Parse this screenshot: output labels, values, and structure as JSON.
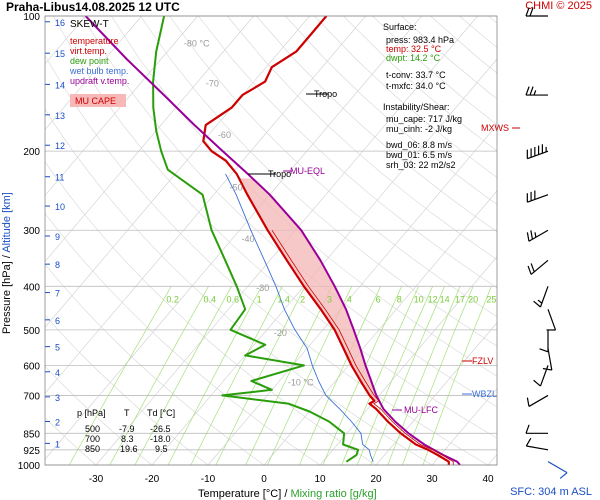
{
  "header": {
    "station": "Praha-Libus",
    "datetime": "14.08.2025 12 UTC",
    "credit": "CHMI © 2025"
  },
  "footer": {
    "sfc": "SFC: 304 m ASL",
    "xlabel_temp": "Temperature [°C]",
    "xlabel_sep": "/",
    "xlabel_mr": "Mixing ratio [g/kg]"
  },
  "yaxis": {
    "pressure_label": "Pressure [hPa]",
    "sep": "/",
    "altitude_label": "Altitude [km]"
  },
  "colors": {
    "temperature": "#cc0000",
    "virt_temp": "#cc0000",
    "dewpoint": "#2a9d0a",
    "wetbulb": "#3a6fd8",
    "parcel": "#990099",
    "cape_fill": "#f4b6b6",
    "mixing": "#a6e07a",
    "iso": "#cfcfcf",
    "grid": "#bdbdbd"
  },
  "legend": {
    "title": "SKEW-T",
    "items": [
      {
        "label": "temperature",
        "color": "#cc0000"
      },
      {
        "label": "virt.temp.",
        "color": "#cc0000"
      },
      {
        "label": "dew point",
        "color": "#2a9d0a"
      },
      {
        "label": "wet bulb temp.",
        "color": "#3a6fd8"
      },
      {
        "label": "updraft v.temp.",
        "color": "#990099"
      }
    ],
    "cape_badge": "MU CAPE"
  },
  "surface_box": {
    "title": "Surface:",
    "press": "press: 983.4 hPa",
    "temp": "temp: 32.5 °C",
    "dwpt": "dwpt: 14.2 °C",
    "tconv": "t-conv: 33.7 °C",
    "tmxfc": "t-mxfc: 34.0 °C",
    "inst_title": "Instability/Shear:",
    "mucape": "mu_cape: 717 J/kg",
    "mucinh": "mu_cinh: -2 J/kg",
    "bwd06": "bwd_06: 8.8 m/s",
    "bwd01": "bwd_01: 6.5 m/s",
    "srh03": "srh_03: 22 m2/s2"
  },
  "table": {
    "headers": [
      "p [hPa]",
      "T",
      "Td [°C]"
    ],
    "rows": [
      [
        "500",
        "-7.9",
        "-26.5"
      ],
      [
        "700",
        "8.3",
        "-18.0"
      ],
      [
        "850",
        "19.6",
        "9.5"
      ]
    ]
  },
  "annotations": {
    "tropo": "Tropo",
    "mu_eql": "MU-EQL",
    "mu_lfc": "MU-LFC",
    "fzlv": "FZLV",
    "wbzl": "WBZL",
    "mxws": "MXWS"
  },
  "mixing_labels": [
    "0.2",
    "0.4",
    "0.6",
    "1",
    "1.4",
    "2",
    "3",
    "4",
    "6",
    "8",
    "10",
    "12",
    "14",
    "17",
    "20",
    "25"
  ],
  "chart_data": {
    "type": "line",
    "title": "",
    "xlabel": "Temperature [°C] / Mixing ratio [g/kg]",
    "ylabel": "Pressure [hPa] / Altitude [km]",
    "xlim": [
      -35,
      45
    ],
    "ylim": [
      1000,
      100
    ],
    "y_scale": "log",
    "x_ticks": [
      "-30",
      "-20",
      "-10",
      "0",
      "10",
      "20",
      "30",
      "40"
    ],
    "p_ticks": [
      "100",
      "200",
      "300",
      "400",
      "500",
      "600",
      "700",
      "850",
      "925",
      "1000"
    ],
    "alt_ticks": [
      "1",
      "2",
      "3",
      "4",
      "5",
      "6",
      "7",
      "8",
      "9",
      "10",
      "11",
      "12",
      "13",
      "14",
      "15",
      "16"
    ],
    "iso_labels": [
      "-80 °C",
      "-70",
      "-60",
      "-50",
      "-40",
      "-30",
      "-20",
      "-10 °C"
    ],
    "series": [
      {
        "name": "temperature",
        "points": [
          [
            1000,
            33
          ],
          [
            983,
            32.5
          ],
          [
            950,
            29.5
          ],
          [
            925,
            27
          ],
          [
            900,
            24
          ],
          [
            850,
            19.6
          ],
          [
            800,
            15.5
          ],
          [
            750,
            11.5
          ],
          [
            730,
            9.5
          ],
          [
            720,
            10
          ],
          [
            700,
            8.3
          ],
          [
            650,
            4.5
          ],
          [
            600,
            0.5
          ],
          [
            550,
            -3.5
          ],
          [
            500,
            -7.9
          ],
          [
            450,
            -13.5
          ],
          [
            400,
            -20
          ],
          [
            350,
            -27
          ],
          [
            300,
            -35
          ],
          [
            250,
            -44
          ],
          [
            225,
            -49
          ],
          [
            210,
            -53
          ],
          [
            200,
            -57
          ],
          [
            190,
            -60
          ],
          [
            175,
            -62
          ],
          [
            160,
            -60
          ],
          [
            150,
            -60
          ],
          [
            140,
            -58
          ],
          [
            130,
            -59
          ],
          [
            120,
            -57
          ],
          [
            110,
            -57
          ],
          [
            100,
            -57
          ]
        ]
      },
      {
        "name": "dew point",
        "points": [
          [
            983,
            14.2
          ],
          [
            950,
            15
          ],
          [
            925,
            14.5
          ],
          [
            900,
            11
          ],
          [
            850,
            9.5
          ],
          [
            800,
            5
          ],
          [
            760,
            0
          ],
          [
            730,
            -5
          ],
          [
            700,
            -18
          ],
          [
            680,
            -10
          ],
          [
            650,
            -15
          ],
          [
            600,
            -8
          ],
          [
            570,
            -20
          ],
          [
            540,
            -18
          ],
          [
            500,
            -26.5
          ],
          [
            450,
            -27
          ],
          [
            400,
            -32
          ],
          [
            350,
            -38
          ],
          [
            300,
            -45
          ],
          [
            250,
            -52
          ],
          [
            220,
            -62
          ],
          [
            200,
            -66
          ],
          [
            180,
            -70
          ],
          [
            160,
            -74
          ],
          [
            140,
            -78
          ],
          [
            120,
            -82
          ],
          [
            100,
            -86
          ]
        ]
      },
      {
        "name": "wet bulb temp.",
        "points": [
          [
            983,
            19
          ],
          [
            950,
            17.5
          ],
          [
            925,
            16.5
          ],
          [
            900,
            14.5
          ],
          [
            850,
            12.5
          ],
          [
            800,
            9
          ],
          [
            750,
            5
          ],
          [
            700,
            0.5
          ],
          [
            650,
            -3
          ],
          [
            600,
            -6.5
          ],
          [
            550,
            -10
          ],
          [
            500,
            -15
          ],
          [
            450,
            -20
          ],
          [
            400,
            -25
          ],
          [
            350,
            -31
          ],
          [
            300,
            -38
          ],
          [
            250,
            -46
          ],
          [
            225,
            -51
          ]
        ]
      },
      {
        "name": "updraft v.temp.",
        "points": [
          [
            1000,
            35
          ],
          [
            983,
            34
          ],
          [
            950,
            30.5
          ],
          [
            925,
            28
          ],
          [
            900,
            25.5
          ],
          [
            850,
            21
          ],
          [
            800,
            16.8
          ],
          [
            750,
            12.8
          ],
          [
            700,
            9.5
          ],
          [
            650,
            6.4
          ],
          [
            600,
            3
          ],
          [
            550,
            -0.5
          ],
          [
            500,
            -4.5
          ],
          [
            450,
            -9
          ],
          [
            400,
            -14.5
          ],
          [
            350,
            -21
          ],
          [
            300,
            -29
          ],
          [
            250,
            -40
          ],
          [
            225,
            -47
          ],
          [
            200,
            -55
          ],
          [
            175,
            -64
          ],
          [
            150,
            -74
          ],
          [
            125,
            -86
          ],
          [
            100,
            -100
          ]
        ]
      }
    ],
    "wind_barbs": [
      {
        "p": 100,
        "dir": 270,
        "kt": 20
      },
      {
        "p": 150,
        "dir": 270,
        "kt": 25
      },
      {
        "p": 200,
        "dir": 250,
        "kt": 55
      },
      {
        "p": 250,
        "dir": 250,
        "kt": 30
      },
      {
        "p": 300,
        "dir": 240,
        "kt": 25
      },
      {
        "p": 350,
        "dir": 230,
        "kt": 20
      },
      {
        "p": 400,
        "dir": 200,
        "kt": 15
      },
      {
        "p": 450,
        "dir": 160,
        "kt": 10
      },
      {
        "p": 500,
        "dir": 180,
        "kt": 10
      },
      {
        "p": 550,
        "dir": 170,
        "kt": 10
      },
      {
        "p": 600,
        "dir": 200,
        "kt": 10
      },
      {
        "p": 700,
        "dir": 240,
        "kt": 10
      },
      {
        "p": 850,
        "dir": 270,
        "kt": 10
      },
      {
        "p": 925,
        "dir": 280,
        "kt": 10
      },
      {
        "p": 983,
        "dir": 120,
        "kt": 10
      }
    ]
  }
}
